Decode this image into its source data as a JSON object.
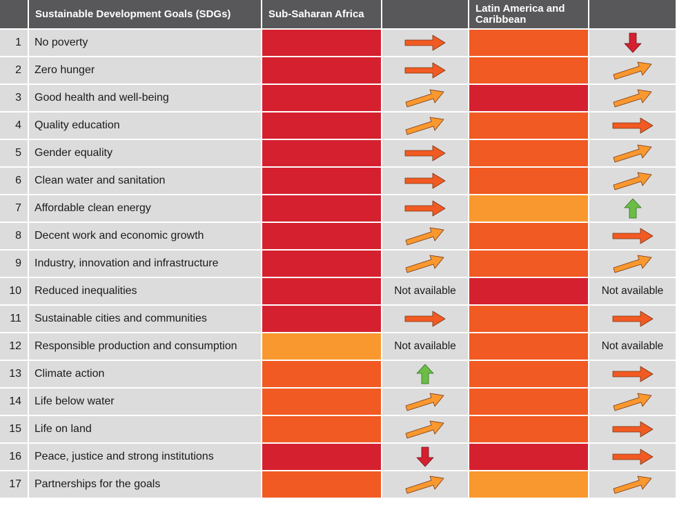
{
  "colors": {
    "header_bg": "#58585a",
    "row_bg": "#dcdcdc",
    "status_red": "#d5212f",
    "status_orange": "#f15a22",
    "status_yellow": "#f8982e",
    "arrow_right": "#f15a22",
    "arrow_diagonal": "#f8982e",
    "arrow_up": "#6cbd45",
    "arrow_down": "#d5212f"
  },
  "chart_data": {
    "type": "table",
    "columns": [
      "",
      "Sustainable Development Goals (SDGs)",
      "Sub-Saharan Africa",
      "",
      "Latin America and Caribbean",
      ""
    ],
    "legend": {
      "status_levels": {
        "red": "status_red",
        "orange": "status_orange",
        "yellow": "status_yellow"
      },
      "trend_icons": {
        "right": "arrow-right-icon",
        "diagonal": "arrow-up-right-icon",
        "up": "arrow-up-icon",
        "down": "arrow-down-icon"
      }
    },
    "rows": [
      {
        "num": "1",
        "goal": "No poverty",
        "ssa_status": "red",
        "ssa_trend": "right",
        "lac_status": "orange",
        "lac_trend": "down"
      },
      {
        "num": "2",
        "goal": "Zero hunger",
        "ssa_status": "red",
        "ssa_trend": "right",
        "lac_status": "orange",
        "lac_trend": "diagonal"
      },
      {
        "num": "3",
        "goal": "Good health and well-being",
        "ssa_status": "red",
        "ssa_trend": "diagonal",
        "lac_status": "red",
        "lac_trend": "diagonal"
      },
      {
        "num": "4",
        "goal": "Quality education",
        "ssa_status": "red",
        "ssa_trend": "diagonal",
        "lac_status": "orange",
        "lac_trend": "right"
      },
      {
        "num": "5",
        "goal": "Gender equality",
        "ssa_status": "red",
        "ssa_trend": "right",
        "lac_status": "orange",
        "lac_trend": "diagonal"
      },
      {
        "num": "6",
        "goal": "Clean water and sanitation",
        "ssa_status": "red",
        "ssa_trend": "right",
        "lac_status": "orange",
        "lac_trend": "diagonal"
      },
      {
        "num": "7",
        "goal": "Affordable clean energy",
        "ssa_status": "red",
        "ssa_trend": "right",
        "lac_status": "yellow",
        "lac_trend": "up"
      },
      {
        "num": "8",
        "goal": "Decent work and economic growth",
        "ssa_status": "red",
        "ssa_trend": "diagonal",
        "lac_status": "orange",
        "lac_trend": "right"
      },
      {
        "num": "9",
        "goal": "Industry, innovation and infrastructure",
        "ssa_status": "red",
        "ssa_trend": "diagonal",
        "lac_status": "orange",
        "lac_trend": "diagonal"
      },
      {
        "num": "10",
        "goal": "Reduced inequalities",
        "ssa_status": "red",
        "ssa_trend": "na",
        "lac_status": "red",
        "lac_trend": "na"
      },
      {
        "num": "11",
        "goal": "Sustainable cities and communities",
        "ssa_status": "red",
        "ssa_trend": "right",
        "lac_status": "orange",
        "lac_trend": "right"
      },
      {
        "num": "12",
        "goal": "Responsible production and consumption",
        "ssa_status": "yellow",
        "ssa_trend": "na",
        "lac_status": "orange",
        "lac_trend": "na"
      },
      {
        "num": "13",
        "goal": "Climate action",
        "ssa_status": "orange",
        "ssa_trend": "up",
        "lac_status": "orange",
        "lac_trend": "right"
      },
      {
        "num": "14",
        "goal": "Life below water",
        "ssa_status": "orange",
        "ssa_trend": "diagonal",
        "lac_status": "orange",
        "lac_trend": "diagonal"
      },
      {
        "num": "15",
        "goal": "Life on land",
        "ssa_status": "orange",
        "ssa_trend": "diagonal",
        "lac_status": "orange",
        "lac_trend": "right"
      },
      {
        "num": "16",
        "goal": "Peace, justice and strong institutions",
        "ssa_status": "red",
        "ssa_trend": "down",
        "lac_status": "red",
        "lac_trend": "right"
      },
      {
        "num": "17",
        "goal": "Partnerships for the goals",
        "ssa_status": "orange",
        "ssa_trend": "diagonal",
        "lac_status": "yellow",
        "lac_trend": "diagonal"
      }
    ],
    "not_available_label": "Not available"
  }
}
